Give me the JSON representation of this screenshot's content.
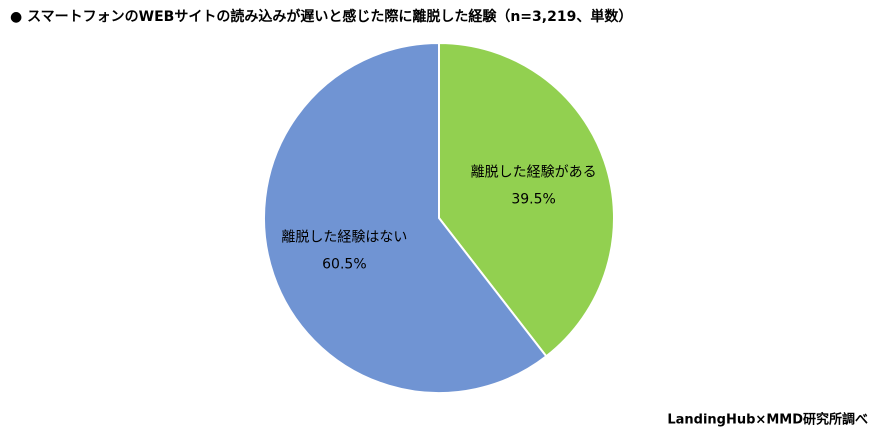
{
  "chart_data": {
    "type": "pie",
    "title": "● スマートフォンのWEBサイトの読み込みが遅いと感じた際に離脱した経験（n=3,219、単数）",
    "source": "LandingHub×MMD研究所調べ",
    "categories": [
      "離脱した経験がある",
      "離脱した経験はない"
    ],
    "values": [
      39.5,
      60.5
    ],
    "value_labels": [
      "39.5%",
      "60.5%"
    ],
    "colors": [
      "#92d050",
      "#7094d3"
    ]
  }
}
